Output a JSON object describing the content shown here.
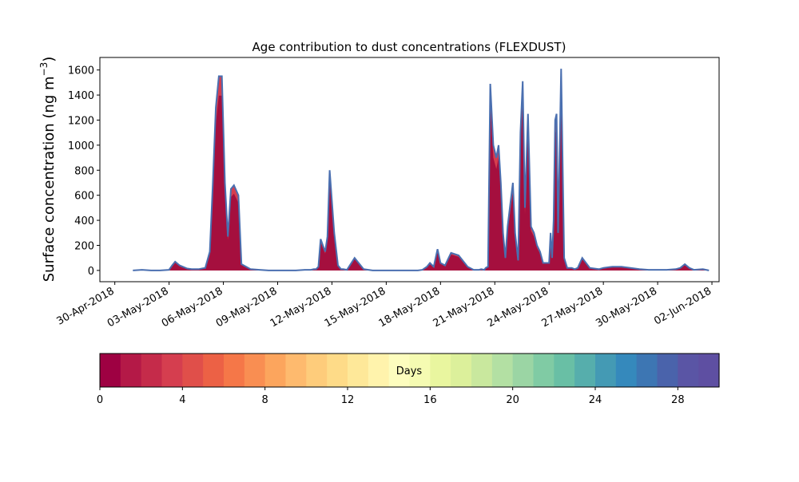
{
  "chart_data": {
    "type": "area",
    "title": "Age contribution to dust concentrations (FLEXDUST)",
    "ylabel": "Surface concentration (ng m",
    "ylabel_exponent": "−3",
    "ylabel_suffix": ")",
    "xlabel": "",
    "ylim": [
      -90,
      1700
    ],
    "xlim": [
      "2018-04-30",
      "2018-06-02"
    ],
    "x_ticks": [
      "30-Apr-2018",
      "03-May-2018",
      "06-May-2018",
      "09-May-2018",
      "12-May-2018",
      "15-May-2018",
      "18-May-2018",
      "21-May-2018",
      "24-May-2018",
      "27-May-2018",
      "30-May-2018",
      "02-Jun-2018"
    ],
    "y_ticks": [
      0,
      200,
      400,
      600,
      800,
      1000,
      1200,
      1400,
      1600
    ],
    "series_colors": {
      "young_fill": "#a50f3e",
      "mid_fill": "#d53e4f",
      "total_line": "#4a6fb0"
    },
    "series": [
      {
        "x": [
          "2018-05-01 00:00",
          "2018-05-01 12:00",
          "2018-05-02 00:00",
          "2018-05-02 12:00",
          "2018-05-03 00:00",
          "2018-05-03 04:00",
          "2018-05-03 08:00",
          "2018-05-03 14:00",
          "2018-05-04 00:00",
          "2018-05-04 06:00",
          "2018-05-04 15:00",
          "2018-05-05 00:00",
          "2018-05-05 06:00",
          "2018-05-05 10:00",
          "2018-05-05 14:00",
          "2018-05-05 18:00",
          "2018-05-05 22:00",
          "2018-05-06 02:00",
          "2018-05-06 06:00",
          "2018-05-06 10:00",
          "2018-05-06 14:00",
          "2018-05-06 20:00",
          "2018-05-07 00:00",
          "2018-05-07 12:00",
          "2018-05-08 00:00",
          "2018-05-08 12:00",
          "2018-05-09 00:00",
          "2018-05-09 12:00",
          "2018-05-10 00:00",
          "2018-05-10 12:00",
          "2018-05-10 20:00",
          "2018-05-11 00:00",
          "2018-05-11 03:00",
          "2018-05-11 06:00",
          "2018-05-11 09:00",
          "2018-05-11 12:00",
          "2018-05-11 15:00",
          "2018-05-11 18:00",
          "2018-05-11 21:00",
          "2018-05-12 03:00",
          "2018-05-12 08:00",
          "2018-05-12 12:00",
          "2018-05-12 15:00",
          "2018-05-12 20:00",
          "2018-05-13 06:00",
          "2018-05-13 18:00",
          "2018-05-14 06:00",
          "2018-05-14 18:00",
          "2018-05-15 06:00",
          "2018-05-15 18:00",
          "2018-05-16 06:00",
          "2018-05-16 18:00",
          "2018-05-17 00:00",
          "2018-05-17 06:00",
          "2018-05-17 10:00",
          "2018-05-17 15:00",
          "2018-05-17 20:00",
          "2018-05-18 00:00",
          "2018-05-18 06:00",
          "2018-05-18 14:00",
          "2018-05-19 00:00",
          "2018-05-19 12:00",
          "2018-05-19 20:00",
          "2018-05-20 03:00",
          "2018-05-20 06:00",
          "2018-05-20 10:00",
          "2018-05-20 12:00",
          "2018-05-20 15:00",
          "2018-05-20 18:00",
          "2018-05-20 22:00",
          "2018-05-21 02:00",
          "2018-05-21 05:00",
          "2018-05-21 08:00",
          "2018-05-21 11:00",
          "2018-05-21 14:00",
          "2018-05-21 17:00",
          "2018-05-21 20:00",
          "2018-05-22 00:00",
          "2018-05-22 03:00",
          "2018-05-22 07:00",
          "2018-05-22 10:00",
          "2018-05-22 13:00",
          "2018-05-22 16:00",
          "2018-05-22 20:00",
          "2018-05-23 00:00",
          "2018-05-23 04:00",
          "2018-05-23 08:00",
          "2018-05-23 12:00",
          "2018-05-23 16:00",
          "2018-05-23 20:00",
          "2018-05-24 00:00",
          "2018-05-24 02:00",
          "2018-05-24 04:00",
          "2018-05-24 06:00",
          "2018-05-24 08:00",
          "2018-05-24 10:00",
          "2018-05-24 12:00",
          "2018-05-24 16:00",
          "2018-05-24 20:00",
          "2018-05-25 00:00",
          "2018-05-25 06:00",
          "2018-05-25 10:00",
          "2018-05-25 14:00",
          "2018-05-25 20:00",
          "2018-05-26 06:00",
          "2018-05-26 18:00",
          "2018-05-27 00:00",
          "2018-05-27 12:00",
          "2018-05-28 00:00",
          "2018-05-28 12:00",
          "2018-05-29 00:00",
          "2018-05-29 12:00",
          "2018-05-30 00:00",
          "2018-05-30 12:00",
          "2018-05-31 00:00",
          "2018-05-31 06:00",
          "2018-05-31 12:00",
          "2018-05-31 18:00",
          "2018-06-01 00:00",
          "2018-06-01 12:00",
          "2018-06-01 20:00"
        ],
        "total": [
          0,
          5,
          0,
          0,
          5,
          40,
          70,
          40,
          15,
          10,
          10,
          20,
          150,
          700,
          1300,
          1550,
          1550,
          700,
          270,
          650,
          680,
          600,
          50,
          10,
          5,
          0,
          0,
          0,
          0,
          5,
          5,
          10,
          10,
          30,
          250,
          200,
          150,
          270,
          800,
          300,
          40,
          10,
          10,
          5,
          100,
          10,
          0,
          0,
          0,
          0,
          0,
          0,
          5,
          30,
          60,
          30,
          170,
          60,
          40,
          140,
          120,
          30,
          5,
          5,
          10,
          5,
          20,
          30,
          1490,
          1000,
          900,
          1000,
          700,
          300,
          100,
          350,
          500,
          700,
          300,
          80,
          1100,
          1510,
          500,
          1250,
          350,
          300,
          200,
          150,
          60,
          60,
          60,
          300,
          100,
          400,
          1200,
          1250,
          300,
          1610,
          100,
          20,
          20,
          10,
          20,
          100,
          20,
          10,
          20,
          30,
          30,
          20,
          10,
          5,
          5,
          5,
          10,
          20,
          50,
          20,
          5,
          10,
          0
        ]
      }
    ],
    "colorbar": {
      "label": "Days",
      "min": 0,
      "max": 30,
      "ticks": [
        0,
        4,
        8,
        12,
        16,
        20,
        24,
        28
      ],
      "colors": [
        "#9e0142",
        "#b41947",
        "#c52b4a",
        "#d53e4f",
        "#e04f4a",
        "#ec6145",
        "#f57748",
        "#f98e52",
        "#fca55d",
        "#feba6e",
        "#fecc7b",
        "#fedb88",
        "#fee899",
        "#fff3ac",
        "#fdfdbe",
        "#f5fbb2",
        "#e9f69f",
        "#dcf09b",
        "#c9e89e",
        "#b3e0a3",
        "#9bd5a4",
        "#80cba4",
        "#69bfa5",
        "#56aeac",
        "#449ab4",
        "#3589bc",
        "#3d76b3",
        "#4a63ab",
        "#5a55a5",
        "#5e4fa2"
      ]
    }
  }
}
